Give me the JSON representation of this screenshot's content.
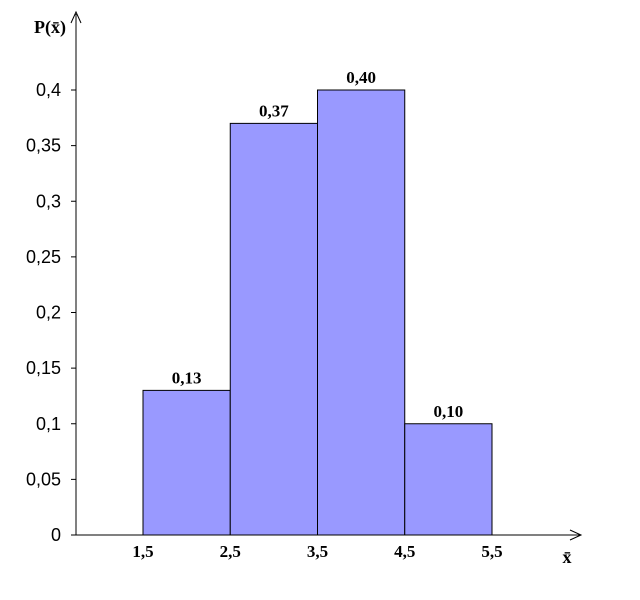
{
  "chart_data": {
    "type": "bar",
    "title": "",
    "xlabel": "x̄",
    "ylabel": "P(x̄)",
    "bin_edges": [
      1.5,
      2.5,
      3.5,
      4.5,
      5.5
    ],
    "x_tick_labels": [
      "1,5",
      "2,5",
      "3,5",
      "4,5",
      "5,5"
    ],
    "values": [
      0.13,
      0.37,
      0.4,
      0.1
    ],
    "value_labels": [
      "0,13",
      "0,37",
      "0,40",
      "0,10"
    ],
    "ylim": [
      0,
      0.4
    ],
    "y_ticks": [
      0,
      0.05,
      0.1,
      0.15,
      0.2,
      0.25,
      0.3,
      0.35,
      0.4
    ],
    "y_tick_labels": [
      "0",
      "0,05",
      "0,1",
      "0,15",
      "0,2",
      "0,25",
      "0,3",
      "0,35",
      "0,4"
    ],
    "bar_color": "#9999ff",
    "bar_edge_color": "#000000",
    "grid": false,
    "legend": "none"
  }
}
